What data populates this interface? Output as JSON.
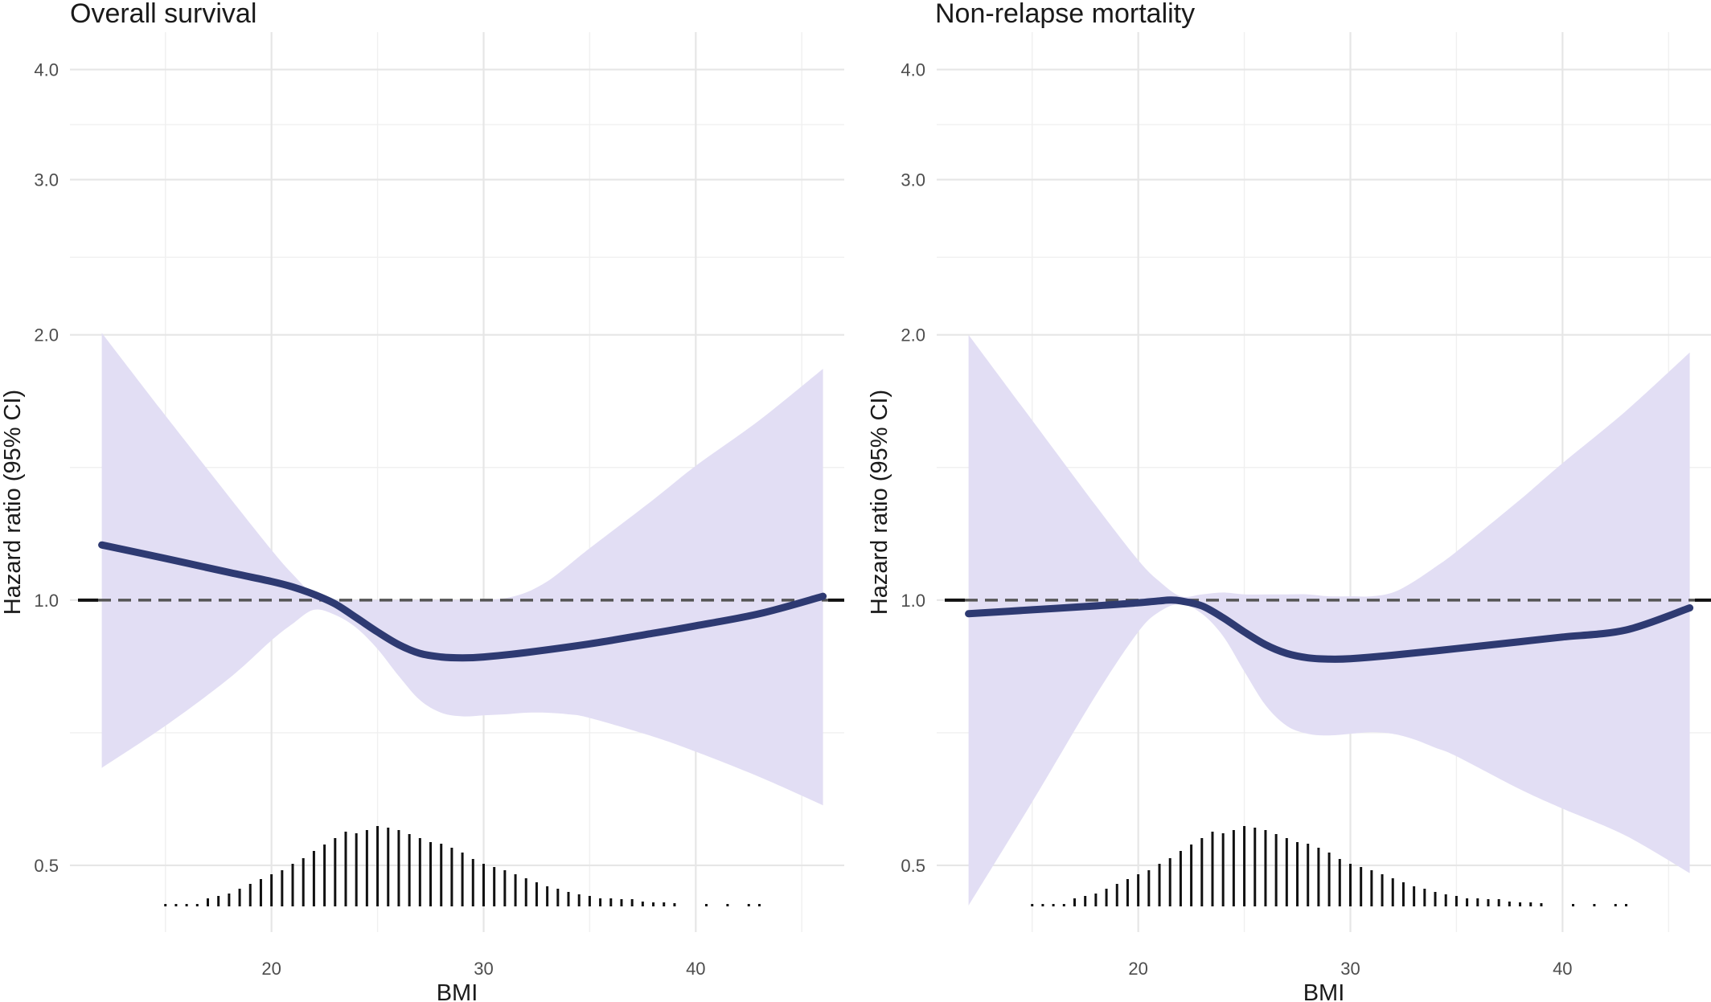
{
  "chart_data": [
    {
      "type": "line",
      "title": "Overall survival",
      "xlabel": "BMI",
      "ylabel": "Hazard ratio (95% CI)",
      "y_scale": "log",
      "xlim": [
        10.5,
        47
      ],
      "ylim": [
        0.42,
        4.6
      ],
      "x_ticks": [
        20,
        30,
        40
      ],
      "y_ticks": [
        0.5,
        1.0,
        2.0,
        3.0,
        4.0
      ],
      "y_tick_labels": [
        "0.5",
        "1.0",
        "2.0",
        "3.0",
        "4.0"
      ],
      "grid": true,
      "reference_line": 1.0,
      "colors": {
        "line": "#2e3a72",
        "band": "#e2def4",
        "reference": "#555555",
        "rug": "#111111"
      },
      "series": [
        {
          "x": [
            12,
            15,
            18,
            20,
            21,
            22,
            23,
            24,
            25,
            26,
            27,
            28,
            29,
            30,
            32,
            35,
            38,
            40,
            43,
            46
          ],
          "y": [
            1.155,
            1.115,
            1.075,
            1.05,
            1.035,
            1.015,
            0.99,
            0.955,
            0.92,
            0.89,
            0.87,
            0.862,
            0.86,
            0.862,
            0.872,
            0.892,
            0.917,
            0.935,
            0.965,
            1.01
          ]
        },
        {
          "x": [
            12,
            15,
            18,
            20,
            21,
            22,
            23,
            24,
            25,
            26,
            27,
            28,
            29,
            30,
            31,
            32,
            33,
            34,
            35,
            38,
            40,
            43,
            46
          ],
          "y": [
            2.01,
            1.62,
            1.31,
            1.14,
            1.07,
            1.015,
            1.0,
            1.0,
            1.0,
            1.0,
            1.0,
            1.0,
            1.0,
            1.0,
            1.005,
            1.02,
            1.05,
            1.095,
            1.145,
            1.3,
            1.42,
            1.6,
            1.83
          ]
        },
        {
          "x": [
            12,
            15,
            18,
            20,
            21,
            22,
            23,
            24,
            25,
            26,
            27,
            28,
            29,
            30,
            31,
            32,
            33,
            34,
            35,
            38,
            40,
            43,
            46
          ],
          "y": [
            0.645,
            0.72,
            0.815,
            0.9,
            0.94,
            0.975,
            0.962,
            0.93,
            0.88,
            0.82,
            0.77,
            0.745,
            0.738,
            0.74,
            0.742,
            0.745,
            0.745,
            0.742,
            0.735,
            0.7,
            0.673,
            0.63,
            0.585
          ]
        }
      ],
      "rug": {
        "x": [
          15,
          15.5,
          16,
          16.5,
          17,
          17.5,
          18,
          18.5,
          19,
          19.5,
          20,
          20.5,
          21,
          21.5,
          22,
          22.5,
          23,
          23.5,
          24,
          24.5,
          25,
          25.5,
          26,
          26.5,
          27,
          27.5,
          28,
          28.5,
          29,
          29.5,
          30,
          30.5,
          31,
          31.5,
          32,
          32.5,
          33,
          33.5,
          34,
          34.5,
          35,
          35.5,
          36,
          36.5,
          37,
          37.5,
          38,
          38.5,
          39,
          40.5,
          41.5,
          42.5,
          43
        ],
        "h": [
          0.03,
          0.03,
          0.03,
          0.03,
          0.1,
          0.13,
          0.16,
          0.22,
          0.28,
          0.34,
          0.4,
          0.45,
          0.53,
          0.6,
          0.69,
          0.77,
          0.85,
          0.93,
          0.91,
          0.95,
          1.0,
          0.98,
          0.95,
          0.9,
          0.85,
          0.8,
          0.78,
          0.73,
          0.67,
          0.59,
          0.53,
          0.49,
          0.45,
          0.4,
          0.35,
          0.3,
          0.25,
          0.22,
          0.18,
          0.15,
          0.13,
          0.1,
          0.1,
          0.09,
          0.09,
          0.06,
          0.05,
          0.05,
          0.04,
          0.03,
          0.03,
          0.03,
          0.03
        ]
      }
    },
    {
      "type": "line",
      "title": "Non-relapse mortality",
      "xlabel": "BMI",
      "ylabel": "Hazard ratio (95% CI)",
      "y_scale": "log",
      "xlim": [
        10.5,
        47
      ],
      "ylim": [
        0.42,
        4.6
      ],
      "x_ticks": [
        20,
        30,
        40
      ],
      "y_ticks": [
        0.5,
        1.0,
        2.0,
        3.0,
        4.0
      ],
      "y_tick_labels": [
        "0.5",
        "1.0",
        "2.0",
        "3.0",
        "4.0"
      ],
      "grid": true,
      "reference_line": 1.0,
      "colors": {
        "line": "#2e3a72",
        "band": "#e2def4",
        "reference": "#555555",
        "rug": "#111111"
      },
      "series": [
        {
          "x": [
            12,
            15,
            18,
            20,
            21,
            21.5,
            22,
            23,
            24,
            25,
            26,
            27,
            28,
            29,
            30,
            32,
            35,
            38,
            40,
            43,
            46
          ],
          "y": [
            0.965,
            0.975,
            0.985,
            0.993,
            0.998,
            1.0,
            0.998,
            0.985,
            0.955,
            0.92,
            0.89,
            0.87,
            0.86,
            0.857,
            0.858,
            0.866,
            0.881,
            0.897,
            0.908,
            0.925,
            0.98
          ]
        },
        {
          "x": [
            12,
            15,
            18,
            20,
            21,
            22,
            23,
            24,
            25,
            26,
            27,
            28,
            29,
            30,
            31,
            32,
            33,
            34,
            35,
            38,
            40,
            43,
            46
          ],
          "y": [
            2.0,
            1.6,
            1.28,
            1.11,
            1.05,
            1.01,
            1.015,
            1.02,
            1.015,
            1.015,
            1.015,
            1.015,
            1.01,
            1.01,
            1.01,
            1.02,
            1.05,
            1.09,
            1.135,
            1.3,
            1.43,
            1.64,
            1.91
          ]
        },
        {
          "x": [
            12,
            15,
            18,
            20,
            21,
            22,
            23,
            24,
            25,
            26,
            27,
            28,
            29,
            30,
            31,
            32,
            33,
            34,
            35,
            38,
            40,
            43,
            46
          ],
          "y": [
            0.45,
            0.59,
            0.78,
            0.92,
            0.97,
            0.99,
            0.965,
            0.91,
            0.83,
            0.76,
            0.72,
            0.705,
            0.702,
            0.705,
            0.708,
            0.705,
            0.695,
            0.68,
            0.665,
            0.61,
            0.58,
            0.54,
            0.49
          ]
        }
      ],
      "rug": {
        "x": [
          15,
          15.5,
          16,
          16.5,
          17,
          17.5,
          18,
          18.5,
          19,
          19.5,
          20,
          20.5,
          21,
          21.5,
          22,
          22.5,
          23,
          23.5,
          24,
          24.5,
          25,
          25.5,
          26,
          26.5,
          27,
          27.5,
          28,
          28.5,
          29,
          29.5,
          30,
          30.5,
          31,
          31.5,
          32,
          32.5,
          33,
          33.5,
          34,
          34.5,
          35,
          35.5,
          36,
          36.5,
          37,
          37.5,
          38,
          38.5,
          39,
          40.5,
          41.5,
          42.5,
          43
        ],
        "h": [
          0.03,
          0.03,
          0.03,
          0.03,
          0.1,
          0.13,
          0.16,
          0.22,
          0.28,
          0.34,
          0.4,
          0.45,
          0.53,
          0.6,
          0.69,
          0.77,
          0.85,
          0.93,
          0.91,
          0.95,
          1.0,
          0.98,
          0.95,
          0.9,
          0.85,
          0.8,
          0.78,
          0.73,
          0.67,
          0.59,
          0.53,
          0.49,
          0.45,
          0.4,
          0.35,
          0.3,
          0.25,
          0.22,
          0.18,
          0.15,
          0.13,
          0.1,
          0.1,
          0.09,
          0.09,
          0.06,
          0.05,
          0.05,
          0.04,
          0.03,
          0.03,
          0.03,
          0.03
        ]
      }
    }
  ]
}
